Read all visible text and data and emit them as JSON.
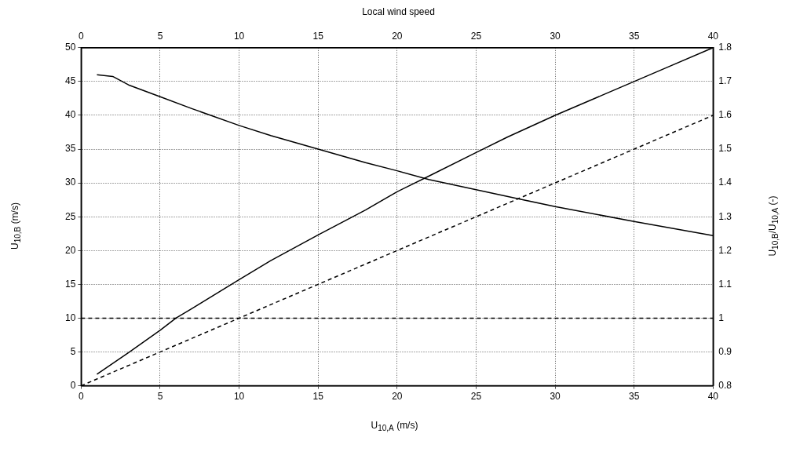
{
  "chart_data": {
    "type": "line",
    "title": "Local wind speed",
    "xlabel": "U$_{10,A}$ (m/s)",
    "ylabel": "U$_{10,B}$ (m/s)",
    "y2label": "U$_{10,B}$/U$_{10,A}$ (-)",
    "xlim": [
      0,
      40
    ],
    "xticks": [
      0,
      5,
      10,
      15,
      20,
      25,
      30,
      35,
      40
    ],
    "x2lim": [
      0,
      40
    ],
    "x2ticks": [
      0,
      5,
      10,
      15,
      20,
      25,
      30,
      35,
      40
    ],
    "ylim": [
      0,
      50
    ],
    "yticks": [
      0,
      5,
      10,
      15,
      20,
      25,
      30,
      35,
      40,
      45,
      50
    ],
    "y2lim": [
      0.8,
      1.8
    ],
    "y2ticks": [
      0.8,
      0.9,
      1,
      1.1,
      1.2,
      1.3,
      1.4,
      1.5,
      1.6,
      1.7,
      1.8
    ],
    "grid": true,
    "marker": "none",
    "series": [
      {
        "type": "line",
        "color": "#000000",
        "line_style": "solid",
        "x": [
          1,
          2,
          3,
          5,
          6,
          7,
          10,
          12,
          15,
          18,
          20,
          22,
          25,
          27,
          30,
          33,
          35,
          37,
          40
        ],
        "values": [
          1.7,
          3.3,
          4.9,
          8.2,
          10,
          11.4,
          15.7,
          18.5,
          22.3,
          26,
          28.7,
          31,
          34.5,
          36.8,
          40,
          43,
          45,
          47,
          50
        ]
      },
      {
        "type": "line",
        "color": "#000000",
        "line_style": "solid",
        "axis": "y2",
        "x": [
          1,
          2,
          3,
          5,
          7,
          10,
          12,
          15,
          18,
          20,
          22,
          25,
          28,
          30,
          35,
          40
        ],
        "values": [
          1.72,
          1.715,
          1.69,
          1.655,
          1.62,
          1.57,
          1.54,
          1.5,
          1.46,
          1.436,
          1.41,
          1.38,
          1.35,
          1.33,
          1.286,
          1.244
        ]
      },
      {
        "type": "line",
        "color": "#000000",
        "line_style": "dashed",
        "x": [
          0,
          40
        ],
        "values": [
          0,
          40
        ]
      }
    ],
    "ref_lines": [
      {
        "axis": "y2",
        "value": 1,
        "color": "#000000",
        "line_style": "dashed"
      }
    ]
  }
}
